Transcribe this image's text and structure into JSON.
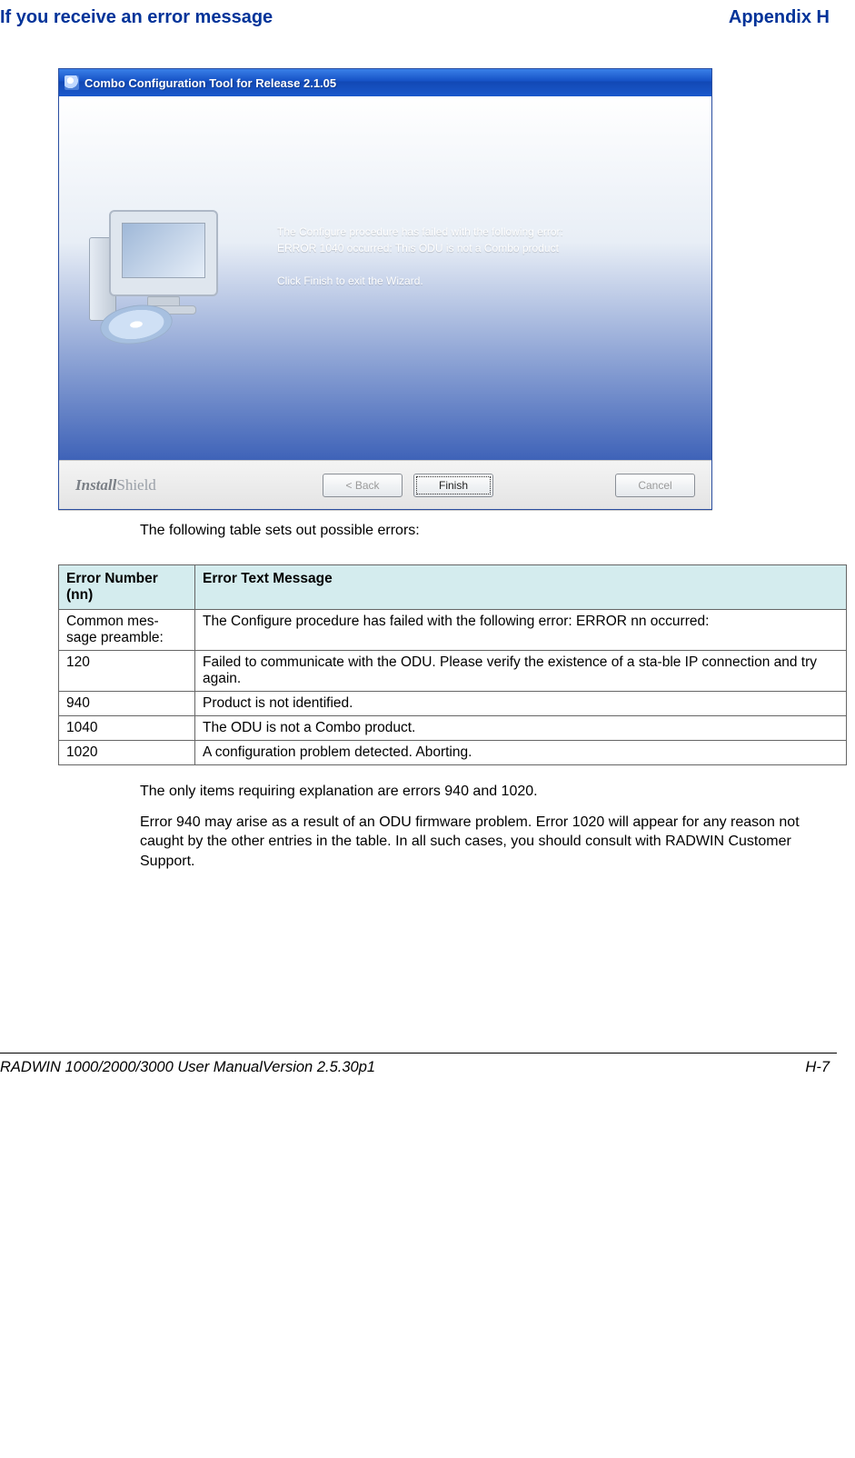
{
  "header": {
    "left": "If you receive an error message",
    "right": "Appendix H"
  },
  "dialog": {
    "title": "Combo Configuration Tool for Release 2.1.05",
    "body_line1": "The Configure procedure has failed with the following error:",
    "body_line2": "ERROR 1040 occurred: This ODU is not a Combo product",
    "body_line3": "Click Finish to exit the Wizard.",
    "brand1": "Install",
    "brand2": "Shield",
    "back_label": "<  Back",
    "finish_label": "Finish",
    "cancel_label": "Cancel"
  },
  "caption_after_dialog": "The following table sets out possible errors:",
  "table": {
    "header_col1_l1": "Error Number",
    "header_col1_l2": "(nn)",
    "header_col2": "Error Text Message",
    "columns_bg": "#d4ecee",
    "border_color": "#666666",
    "rows": [
      {
        "c1_l1": "Common mes-",
        "c1_l2": "sage preamble:",
        "c2": "The Configure procedure has failed with the following error: ERROR nn occurred:"
      },
      {
        "c1": "120",
        "c2": "Failed to communicate with the ODU. Please verify the existence of a sta-ble IP connection and try again."
      },
      {
        "c1": "940",
        "c2": "Product is not identified."
      },
      {
        "c1": "1040",
        "c2": "The ODU is not a Combo product."
      },
      {
        "c1": "1020",
        "c2": "A configuration problem detected. Aborting."
      }
    ]
  },
  "para1": "The only items requiring explanation are errors 940 and 1020.",
  "para2": "Error 940 may arise as a result of an ODU firmware problem. Error 1020 will appear for any reason not caught by the other entries in the table. In all such cases, you should consult with RADWIN Customer Support.",
  "footer": {
    "left": "RADWIN 1000/2000/3000 User ManualVersion  2.5.30p1",
    "right": "H-7"
  },
  "colors": {
    "header_text": "#003399",
    "titlebar_gradient_top": "#3a80e8",
    "titlebar_gradient_bottom": "#1a58cc",
    "table_header_bg": "#d4ecee"
  }
}
